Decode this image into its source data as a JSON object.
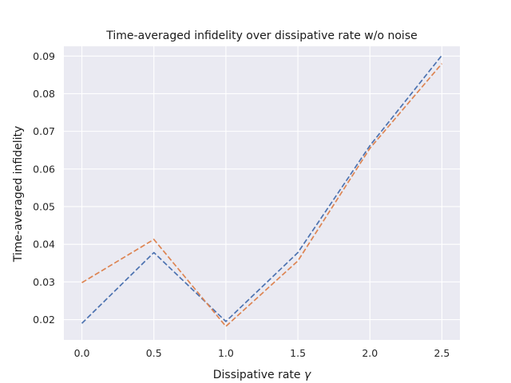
{
  "chart_data": {
    "type": "line",
    "title": "Time-averaged infidelity over dissipative rate w/o noise",
    "xlabel": "Dissipative rate",
    "xlabel_symbol": "γ",
    "ylabel": "Time-averaged infidelity",
    "x": [
      0.0,
      0.5,
      1.0,
      1.5,
      2.0,
      2.5
    ],
    "xlim": [
      -0.125,
      2.625
    ],
    "ylim": [
      0.0146,
      0.0926
    ],
    "xticks": [
      "0.0",
      "0.5",
      "1.0",
      "1.5",
      "2.0",
      "2.5"
    ],
    "yticks": [
      "0.02",
      "0.03",
      "0.04",
      "0.05",
      "0.06",
      "0.07",
      "0.08",
      "0.09"
    ],
    "grid": true,
    "background": "#eaeaf2",
    "grid_color": "#ffffff",
    "line_style": "dashed",
    "series": [
      {
        "values": [
          0.019,
          0.0378,
          0.0195,
          0.0378,
          0.0662,
          0.0902
        ],
        "color": "#4c72b0"
      },
      {
        "values": [
          0.0298,
          0.0413,
          0.0182,
          0.0356,
          0.0655,
          0.088
        ],
        "color": "#dd8452"
      }
    ]
  }
}
